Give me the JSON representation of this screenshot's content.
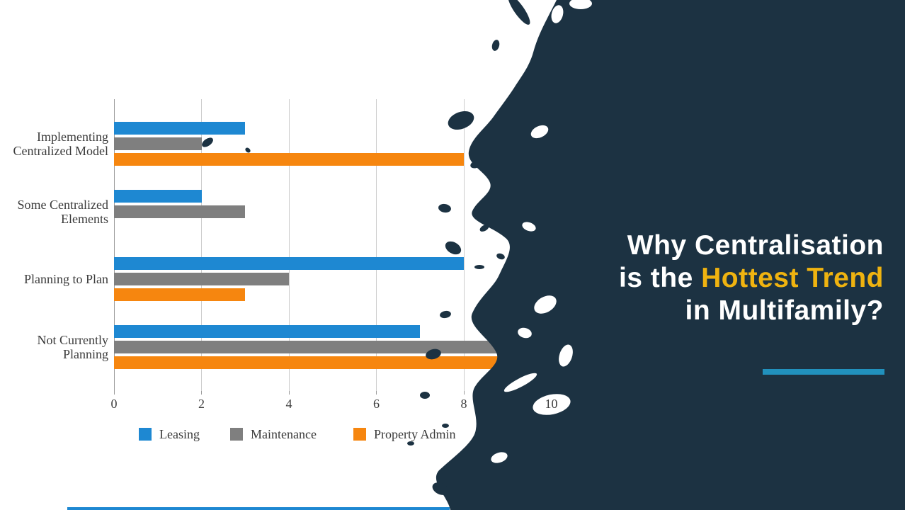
{
  "slide": {
    "title": {
      "line1": "Why Centralisation",
      "line2_prefix": "is the ",
      "line2_highlight": "Hottest Trend",
      "line3": "in Multifamily?"
    },
    "colors": {
      "background": "#ffffff",
      "ink": "#1c3242",
      "title_text": "#ffffff",
      "highlight": "#efb310",
      "underline": "#2191bd",
      "bottom_line": "#1e88d2"
    }
  },
  "chart_data": {
    "type": "bar",
    "orientation": "horizontal",
    "title": "",
    "xlabel": "",
    "ylabel": "",
    "categories": [
      "Implementing Centralized Model",
      "Some Centralized Elements",
      "Planning to Plan",
      "Not Currently Planning"
    ],
    "category_lines": [
      [
        "Implementing",
        "Centralized Model"
      ],
      [
        "Some Centralized",
        "Elements"
      ],
      [
        "Planning to Plan"
      ],
      [
        "Not Currently",
        "Planning"
      ]
    ],
    "series": [
      {
        "name": "Leasing",
        "color": "#1e88d2",
        "values": [
          3,
          2,
          8,
          7
        ]
      },
      {
        "name": "Maintenance",
        "color": "#7f7f7f",
        "values": [
          2,
          3,
          4,
          10
        ]
      },
      {
        "name": "Property Admin",
        "color": "#f6860f",
        "values": [
          8,
          0,
          3,
          9
        ]
      }
    ],
    "xlim": [
      0,
      10
    ],
    "xticks": [
      0,
      2,
      4,
      6,
      8,
      10
    ],
    "grid": true,
    "legend_position": "bottom"
  }
}
